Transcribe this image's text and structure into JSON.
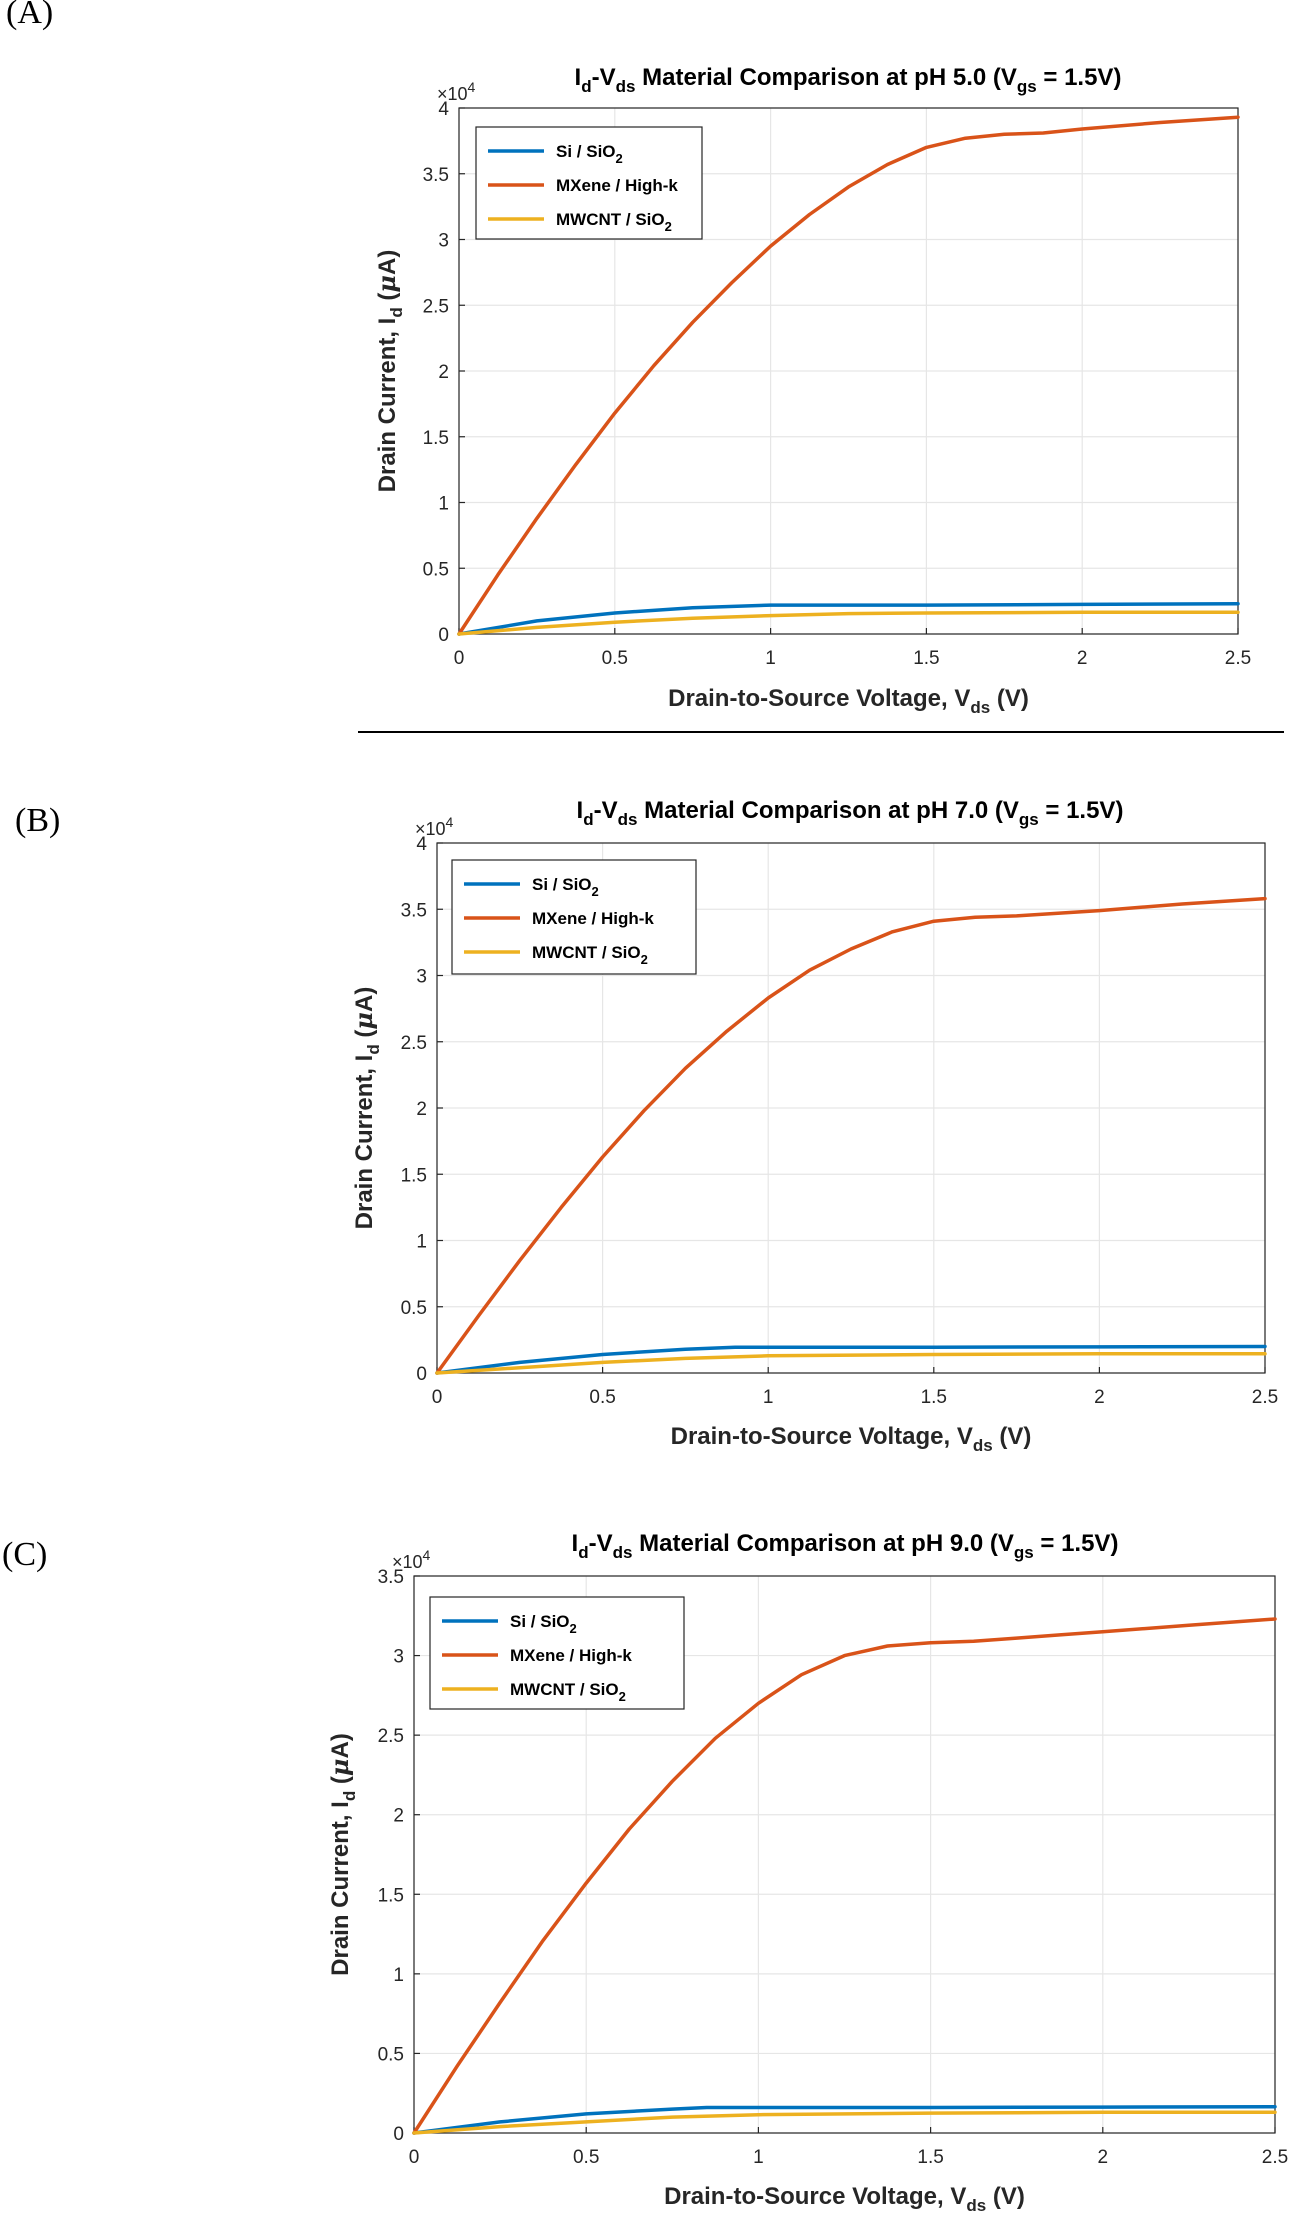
{
  "panels": [
    {
      "label": "(A)",
      "title": {
        "i": "I",
        "i_sub": "d",
        "dash": "-V",
        "v_sub": "ds",
        "rest": " Material Comparison at pH 5.0 (V",
        "gs_sub": "gs",
        "end": " = 1.5V)"
      },
      "ylabel": {
        "pre": "Drain Current, I",
        "sub": "d",
        "post": " (",
        "mu": "μ",
        "unit": "A)"
      },
      "xlabel": {
        "pre": "Drain-to-Source Voltage, V",
        "sub": "ds",
        "post": " (V)"
      },
      "multiplier": {
        "base": "×10",
        "exp": "4"
      }
    },
    {
      "label": "(B)",
      "title": {
        "i": "I",
        "i_sub": "d",
        "dash": "-V",
        "v_sub": "ds",
        "rest": " Material Comparison at pH 7.0 (V",
        "gs_sub": "gs",
        "end": " = 1.5V)"
      },
      "ylabel": {
        "pre": "Drain Current, I",
        "sub": "d",
        "post": " (",
        "mu": "μ",
        "unit": "A)"
      },
      "xlabel": {
        "pre": "Drain-to-Source Voltage, V",
        "sub": "ds",
        "post": " (V)"
      },
      "multiplier": {
        "base": "×10",
        "exp": "4"
      }
    },
    {
      "label": "(C)",
      "title": {
        "i": "I",
        "i_sub": "d",
        "dash": "-V",
        "v_sub": "ds",
        "rest": " Material Comparison at pH 9.0 (V",
        "gs_sub": "gs",
        "end": " = 1.5V)"
      },
      "ylabel": {
        "pre": "Drain Current, I",
        "sub": "d",
        "post": " (",
        "mu": "μ",
        "unit": "A)"
      },
      "xlabel": {
        "pre": "Drain-to-Source Voltage, V",
        "sub": "ds",
        "post": " (V)"
      },
      "multiplier": {
        "base": "×10",
        "exp": "4"
      }
    }
  ],
  "legend": [
    {
      "text": "Si / SiO",
      "sub": "2"
    },
    {
      "text": "MXene / High-k",
      "sub": ""
    },
    {
      "text": "MWCNT / SiO",
      "sub": "2"
    }
  ],
  "colors": {
    "si": "#0072BD",
    "mxene": "#D95319",
    "mwcnt": "#EDB120",
    "grid": "#e6e6e6",
    "axis": "#262626"
  },
  "chart_data": [
    {
      "type": "line",
      "title": "Id-Vds Material Comparison at pH 5.0 (Vgs = 1.5V)",
      "xlabel": "Drain-to-Source Voltage, Vds (V)",
      "ylabel": "Drain Current, Id (μA)",
      "y_scale_multiplier": 10000,
      "xlim": [
        0,
        2.5
      ],
      "ylim": [
        0,
        4
      ],
      "xticks": [
        0,
        0.5,
        1,
        1.5,
        2,
        2.5
      ],
      "xtick_labels": [
        "0",
        "0.5",
        "1",
        "1.5",
        "2",
        "2.5"
      ],
      "yticks": [
        0,
        0.5,
        1,
        1.5,
        2,
        2.5,
        3,
        3.5,
        4
      ],
      "ytick_labels": [
        "0",
        "0.5",
        "1",
        "1.5",
        "2",
        "2.5",
        "3",
        "3.5",
        "4"
      ],
      "grid": true,
      "legend_position": "top-left",
      "series": [
        {
          "name": "Si / SiO2",
          "x": [
            0,
            0.25,
            0.5,
            0.75,
            1.0,
            1.5,
            2.0,
            2.5
          ],
          "y": [
            0,
            0.1,
            0.16,
            0.2,
            0.22,
            0.22,
            0.225,
            0.23
          ]
        },
        {
          "name": "MXene / High-k",
          "x": [
            0,
            0.125,
            0.25,
            0.375,
            0.5,
            0.625,
            0.75,
            0.875,
            1.0,
            1.125,
            1.25,
            1.375,
            1.5,
            1.625,
            1.75,
            1.875,
            2.0,
            2.25,
            2.5
          ],
          "y": [
            0,
            0.45,
            0.88,
            1.29,
            1.68,
            2.04,
            2.37,
            2.67,
            2.95,
            3.19,
            3.4,
            3.57,
            3.7,
            3.77,
            3.8,
            3.81,
            3.84,
            3.89,
            3.93
          ]
        },
        {
          "name": "MWCNT / SiO2",
          "x": [
            0,
            0.25,
            0.5,
            0.75,
            1.0,
            1.25,
            1.5,
            2.0,
            2.5
          ],
          "y": [
            0,
            0.05,
            0.09,
            0.12,
            0.14,
            0.155,
            0.16,
            0.165,
            0.165
          ]
        }
      ]
    },
    {
      "type": "line",
      "title": "Id-Vds Material Comparison at pH 7.0 (Vgs = 1.5V)",
      "xlabel": "Drain-to-Source Voltage, Vds (V)",
      "ylabel": "Drain Current, Id (μA)",
      "y_scale_multiplier": 10000,
      "xlim": [
        0,
        2.5
      ],
      "ylim": [
        0,
        4
      ],
      "xticks": [
        0,
        0.5,
        1,
        1.5,
        2,
        2.5
      ],
      "xtick_labels": [
        "0",
        "0.5",
        "1",
        "1.5",
        "2",
        "2.5"
      ],
      "yticks": [
        0,
        0.5,
        1,
        1.5,
        2,
        2.5,
        3,
        3.5,
        4
      ],
      "ytick_labels": [
        "0",
        "0.5",
        "1",
        "1.5",
        "2",
        "2.5",
        "3",
        "3.5",
        "4"
      ],
      "grid": true,
      "legend_position": "top-left",
      "series": [
        {
          "name": "Si / SiO2",
          "x": [
            0,
            0.25,
            0.5,
            0.75,
            0.9,
            1.5,
            2.0,
            2.5
          ],
          "y": [
            0,
            0.08,
            0.14,
            0.18,
            0.195,
            0.195,
            0.197,
            0.2
          ]
        },
        {
          "name": "MXene / High-k",
          "x": [
            0,
            0.125,
            0.25,
            0.375,
            0.5,
            0.625,
            0.75,
            0.875,
            1.0,
            1.125,
            1.25,
            1.375,
            1.5,
            1.625,
            1.75,
            1.875,
            2.0,
            2.25,
            2.5
          ],
          "y": [
            0,
            0.43,
            0.85,
            1.25,
            1.63,
            1.98,
            2.3,
            2.58,
            2.83,
            3.04,
            3.2,
            3.33,
            3.41,
            3.44,
            3.45,
            3.47,
            3.49,
            3.54,
            3.58
          ]
        },
        {
          "name": "MWCNT / SiO2",
          "x": [
            0,
            0.25,
            0.5,
            0.75,
            1.0,
            1.5,
            2.0,
            2.5
          ],
          "y": [
            0,
            0.04,
            0.08,
            0.11,
            0.13,
            0.14,
            0.145,
            0.145
          ]
        }
      ]
    },
    {
      "type": "line",
      "title": "Id-Vds Material Comparison at pH 9.0 (Vgs = 1.5V)",
      "xlabel": "Drain-to-Source Voltage, Vds (V)",
      "ylabel": "Drain Current, Id (μA)",
      "y_scale_multiplier": 10000,
      "xlim": [
        0,
        2.5
      ],
      "ylim": [
        0,
        3.5
      ],
      "xticks": [
        0,
        0.5,
        1,
        1.5,
        2,
        2.5
      ],
      "xtick_labels": [
        "0",
        "0.5",
        "1",
        "1.5",
        "2",
        "2.5"
      ],
      "yticks": [
        0,
        0.5,
        1,
        1.5,
        2,
        2.5,
        3,
        3.5
      ],
      "ytick_labels": [
        "0",
        "0.5",
        "1",
        "1.5",
        "2",
        "2.5",
        "3",
        "3.5"
      ],
      "grid": true,
      "legend_position": "top-left",
      "series": [
        {
          "name": "Si / SiO2",
          "x": [
            0,
            0.25,
            0.5,
            0.75,
            0.85,
            1.5,
            2.0,
            2.5
          ],
          "y": [
            0,
            0.07,
            0.12,
            0.15,
            0.16,
            0.16,
            0.163,
            0.165
          ]
        },
        {
          "name": "MXene / High-k",
          "x": [
            0,
            0.125,
            0.25,
            0.375,
            0.5,
            0.625,
            0.75,
            0.875,
            1.0,
            1.125,
            1.25,
            1.375,
            1.5,
            1.625,
            1.75,
            1.875,
            2.0,
            2.25,
            2.5
          ],
          "y": [
            0,
            0.42,
            0.82,
            1.21,
            1.57,
            1.91,
            2.21,
            2.48,
            2.7,
            2.88,
            3.0,
            3.06,
            3.08,
            3.09,
            3.11,
            3.13,
            3.15,
            3.19,
            3.23
          ]
        },
        {
          "name": "MWCNT / SiO2",
          "x": [
            0,
            0.25,
            0.5,
            0.75,
            1.0,
            1.5,
            2.0,
            2.5
          ],
          "y": [
            0,
            0.04,
            0.07,
            0.1,
            0.115,
            0.125,
            0.13,
            0.13
          ]
        }
      ]
    }
  ]
}
